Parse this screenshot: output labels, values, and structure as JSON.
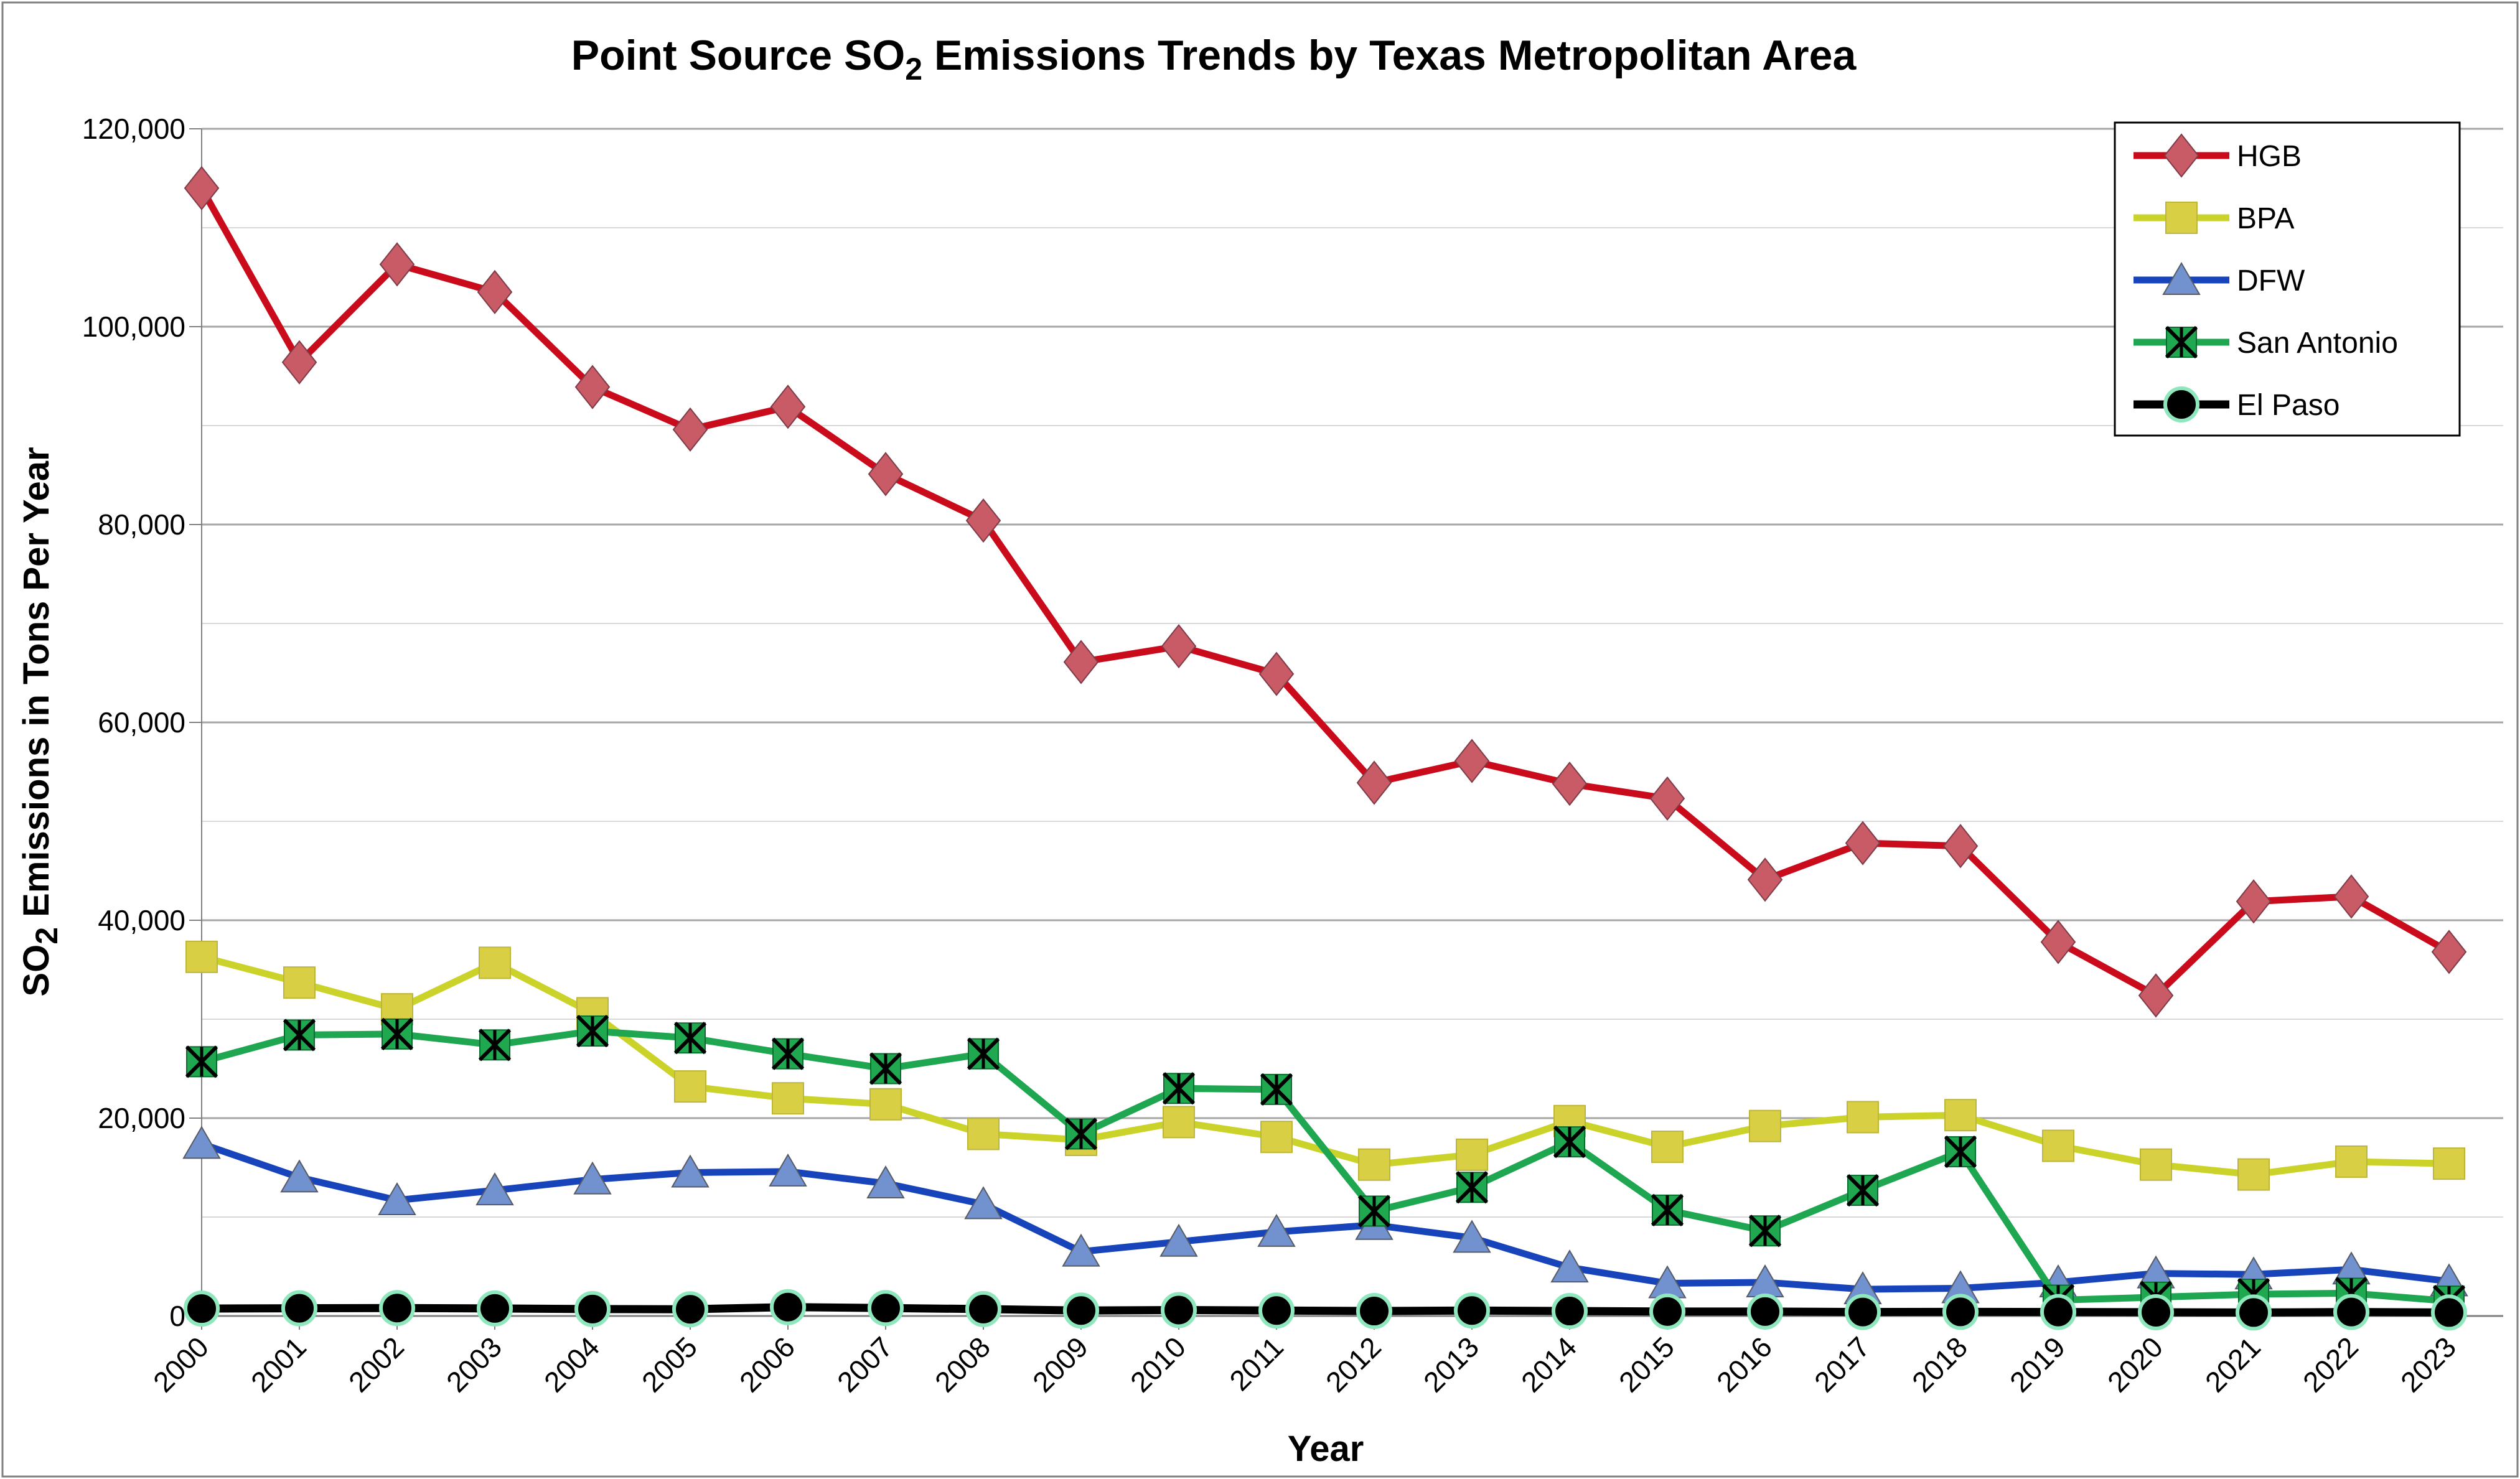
{
  "chart_data": {
    "type": "line",
    "title_parts": {
      "pre": "Point Source SO",
      "sub": "2",
      "post": " Emissions Trends by Texas Metropolitan Area"
    },
    "xlabel": "Year",
    "ylabel_parts": {
      "pre": "SO",
      "sub": "2",
      "post": " Emissions in Tons Per Year"
    },
    "ylim": [
      0,
      120000
    ],
    "y_major_step": 20000,
    "y_minor_step": 10000,
    "y_tick_labels": [
      "0",
      "20,000",
      "40,000",
      "60,000",
      "80,000",
      "100,000",
      "120,000"
    ],
    "grid": "horizontal",
    "legend_position": "top-right",
    "categories": [
      "2000",
      "2001",
      "2002",
      "2003",
      "2004",
      "2005",
      "2006",
      "2007",
      "2008",
      "2009",
      "2010",
      "2011",
      "2012",
      "2013",
      "2014",
      "2015",
      "2016",
      "2017",
      "2018",
      "2019",
      "2020",
      "2021",
      "2022",
      "2023"
    ],
    "series": [
      {
        "name": "HGB",
        "marker": "diamond",
        "line_color": "#C90B1C",
        "marker_fill": "#C85B66",
        "marker_edge": "#7E3B47",
        "values": [
          114000,
          96400,
          106300,
          103500,
          93900,
          89600,
          91900,
          85100,
          80400,
          66100,
          67700,
          64900,
          53900,
          56100,
          53800,
          52300,
          44100,
          47800,
          47500,
          37800,
          32400,
          41900,
          42400,
          36800
        ]
      },
      {
        "name": "BPA",
        "marker": "square",
        "line_color": "#CBD32B",
        "marker_fill": "#D9CF44",
        "marker_edge": "#BDB63C",
        "values": [
          36300,
          33700,
          31000,
          35700,
          30600,
          23200,
          22000,
          21400,
          18400,
          17800,
          19600,
          18100,
          15300,
          16300,
          19700,
          17100,
          19200,
          20100,
          20300,
          17200,
          15300,
          14300,
          15600,
          15400
        ]
      },
      {
        "name": "DFW",
        "marker": "triangle",
        "line_color": "#1743BB",
        "marker_fill": "#7291CF",
        "marker_edge": "#555B66",
        "values": [
          17400,
          14000,
          11700,
          12700,
          13800,
          14500,
          14600,
          13400,
          11300,
          6500,
          7500,
          8500,
          9200,
          7900,
          4900,
          3300,
          3400,
          2700,
          2800,
          3400,
          4300,
          4200,
          4700,
          3500
        ]
      },
      {
        "name": "San Antonio",
        "marker": "square-x",
        "line_color": "#1EA750",
        "marker_fill": "#1FA84F",
        "marker_edge": "#000000",
        "values": [
          25700,
          28400,
          28500,
          27400,
          28800,
          28100,
          26500,
          25000,
          26500,
          18400,
          23000,
          22900,
          10600,
          13000,
          17600,
          10700,
          8600,
          12700,
          16600,
          1600,
          1900,
          2200,
          2300,
          1500
        ]
      },
      {
        "name": "El Paso",
        "marker": "circle",
        "line_color": "#000000",
        "marker_fill": "#000000",
        "marker_edge": "#8FE8BD",
        "values": [
          750,
          780,
          800,
          760,
          700,
          680,
          900,
          800,
          700,
          550,
          600,
          550,
          500,
          550,
          500,
          450,
          450,
          400,
          420,
          400,
          380,
          350,
          400,
          350
        ]
      }
    ]
  },
  "colors": {
    "background": "#FFFFFF",
    "grid_minor": "#D9D9D9",
    "grid_major": "#A6A6A6",
    "axis": "#808080",
    "outer_border": "#808080",
    "legend_border": "#000000",
    "text": "#000000"
  }
}
